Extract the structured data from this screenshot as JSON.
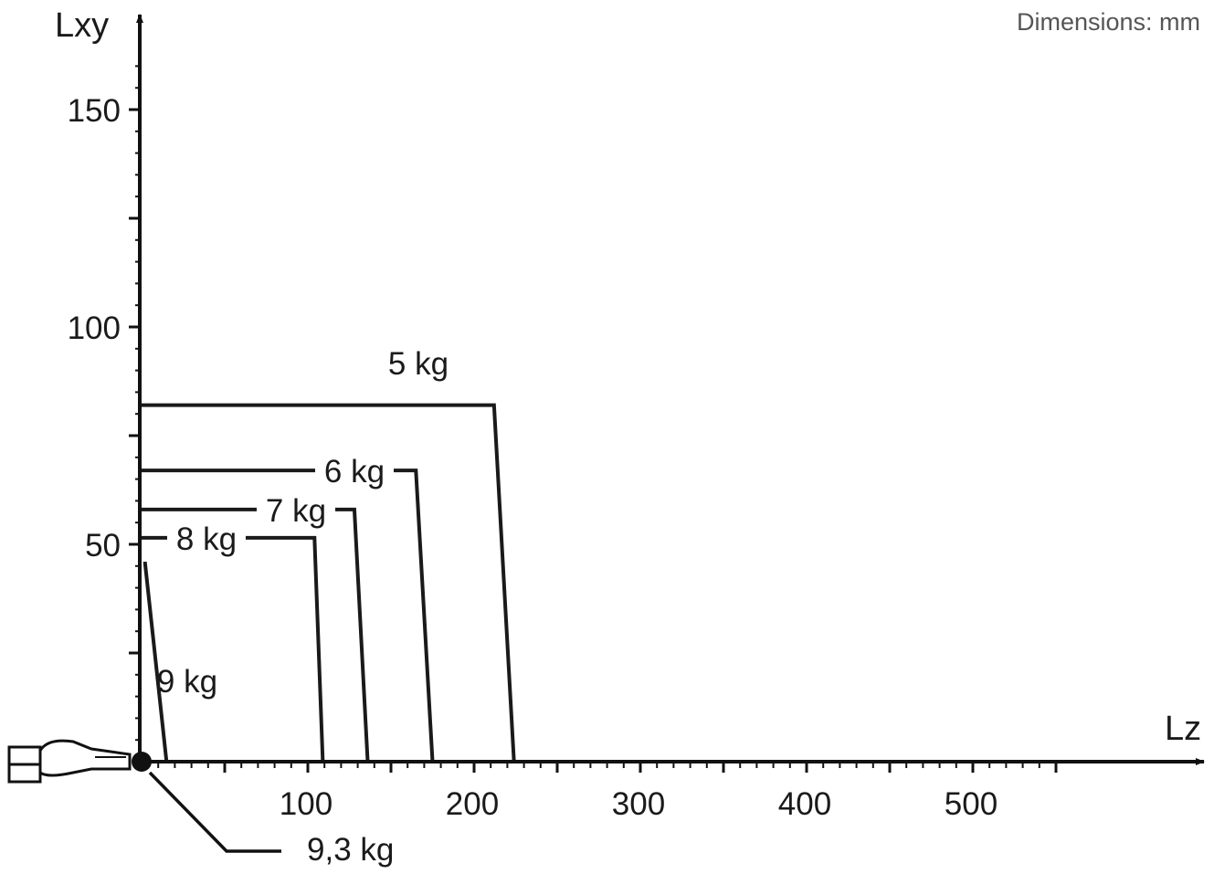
{
  "note": "Dimensions: mm",
  "chart_data": {
    "type": "line",
    "xlabel": "Lz",
    "ylabel": "Lxy",
    "unit": "mm",
    "xlim": [
      0,
      600
    ],
    "ylim": [
      0,
      170
    ],
    "xticks": [
      100,
      200,
      300,
      400,
      500
    ],
    "yticks": [
      50,
      100,
      150
    ],
    "colors": {
      "line": "#1a1a1a",
      "axis": "#111111",
      "note": "#555555"
    },
    "series": [
      {
        "name": "5 kg",
        "points": [
          [
            0,
            82
          ],
          [
            212,
            82
          ],
          [
            224,
            0
          ]
        ]
      },
      {
        "name": "6 kg",
        "points": [
          [
            0,
            67
          ],
          [
            165,
            67
          ],
          [
            175,
            0
          ]
        ]
      },
      {
        "name": "7 kg",
        "points": [
          [
            0,
            58
          ],
          [
            128,
            58
          ],
          [
            136,
            0
          ]
        ]
      },
      {
        "name": "8 kg",
        "points": [
          [
            0,
            51.5
          ],
          [
            104,
            51.5
          ],
          [
            109,
            0
          ]
        ]
      },
      {
        "name": "9 kg",
        "points": [
          [
            2,
            46
          ],
          [
            15,
            0
          ]
        ]
      }
    ],
    "annotation": {
      "label": "9,3 kg",
      "at": [
        0,
        0
      ]
    }
  }
}
